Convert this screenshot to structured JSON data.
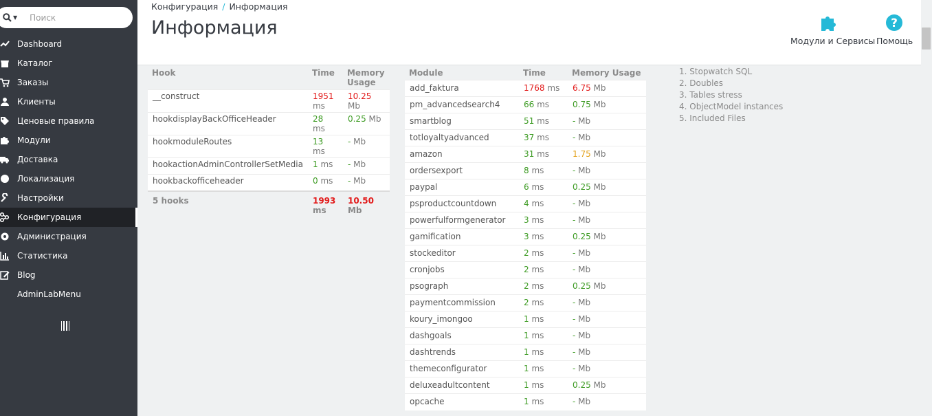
{
  "search": {
    "placeholder": "Поиск"
  },
  "sidebar": {
    "items": [
      {
        "label": "Dashboard",
        "icon": "trending-icon"
      },
      {
        "label": "Каталог",
        "icon": "store-icon"
      },
      {
        "label": "Заказы",
        "icon": "cart-icon"
      },
      {
        "label": "Клиенты",
        "icon": "user-icon"
      },
      {
        "label": "Ценовые правила",
        "icon": "tag-icon"
      },
      {
        "label": "Модули",
        "icon": "puzzle-icon"
      },
      {
        "label": "Доставка",
        "icon": "truck-icon"
      },
      {
        "label": "Локализация",
        "icon": "globe-icon"
      },
      {
        "label": "Настройки",
        "icon": "wrench-icon"
      },
      {
        "label": "Конфигурация",
        "icon": "settings-icon",
        "active": true
      },
      {
        "label": "Администрация",
        "icon": "gear-icon"
      },
      {
        "label": "Статистика",
        "icon": "bar-chart-icon"
      },
      {
        "label": "Blog",
        "icon": "edit-icon"
      },
      {
        "label": "AdminLabMenu",
        "icon": ""
      }
    ]
  },
  "header": {
    "breadcrumb": [
      "Конфигурация",
      "Информация"
    ],
    "breadcrumb_separator": "/",
    "title": "Информация",
    "toolbar": {
      "modules_label": "Модули и Сервисы",
      "help_label": "Помощь"
    }
  },
  "hooks": {
    "headers": {
      "name": "Hook",
      "time": "Time",
      "memory": "Memory Usage"
    },
    "rows": [
      {
        "name": "__construct",
        "time": "1951",
        "time_unit": "ms",
        "time_color": "red",
        "memory": "10.25",
        "memory_unit": "Mb",
        "memory_color": "red"
      },
      {
        "name": "hookdisplayBackOfficeHeader",
        "time": "28",
        "time_unit": "ms",
        "time_color": "green",
        "memory": "0.25",
        "memory_unit": "Mb",
        "memory_color": "green"
      },
      {
        "name": "hookmoduleRoutes",
        "time": "13",
        "time_unit": "ms",
        "time_color": "green",
        "memory": "-",
        "memory_unit": "Mb",
        "memory_color": "green"
      },
      {
        "name": "hookactionAdminControllerSetMedia",
        "time": "1",
        "time_unit": "ms",
        "time_color": "green",
        "memory": "-",
        "memory_unit": "Mb",
        "memory_color": "green"
      },
      {
        "name": "hookbackofficeheader",
        "time": "0",
        "time_unit": "ms",
        "time_color": "green",
        "memory": "-",
        "memory_unit": "Mb",
        "memory_color": "green"
      }
    ],
    "total": {
      "name": "5 hooks",
      "time": "1993",
      "time_unit": "ms",
      "memory": "10.50",
      "memory_unit": "Mb"
    }
  },
  "modules": {
    "headers": {
      "name": "Module",
      "time": "Time",
      "memory": "Memory Usage"
    },
    "rows": [
      {
        "name": "add_faktura",
        "time": "1768",
        "time_unit": "ms",
        "time_color": "red",
        "memory": "6.75",
        "memory_unit": "Mb",
        "memory_color": "red"
      },
      {
        "name": "pm_advancedsearch4",
        "time": "66",
        "time_unit": "ms",
        "time_color": "green",
        "memory": "0.75",
        "memory_unit": "Mb",
        "memory_color": "green"
      },
      {
        "name": "smartblog",
        "time": "51",
        "time_unit": "ms",
        "time_color": "green",
        "memory": "-",
        "memory_unit": "Mb",
        "memory_color": "green"
      },
      {
        "name": "totloyaltyadvanced",
        "time": "37",
        "time_unit": "ms",
        "time_color": "green",
        "memory": "-",
        "memory_unit": "Mb",
        "memory_color": "green"
      },
      {
        "name": "amazon",
        "time": "31",
        "time_unit": "ms",
        "time_color": "green",
        "memory": "1.75",
        "memory_unit": "Mb",
        "memory_color": "orange"
      },
      {
        "name": "ordersexport",
        "time": "8",
        "time_unit": "ms",
        "time_color": "green",
        "memory": "-",
        "memory_unit": "Mb",
        "memory_color": "green"
      },
      {
        "name": "paypal",
        "time": "6",
        "time_unit": "ms",
        "time_color": "green",
        "memory": "0.25",
        "memory_unit": "Mb",
        "memory_color": "green"
      },
      {
        "name": "psproductcountdown",
        "time": "4",
        "time_unit": "ms",
        "time_color": "green",
        "memory": "-",
        "memory_unit": "Mb",
        "memory_color": "green"
      },
      {
        "name": "powerfulformgenerator",
        "time": "3",
        "time_unit": "ms",
        "time_color": "green",
        "memory": "-",
        "memory_unit": "Mb",
        "memory_color": "green"
      },
      {
        "name": "gamification",
        "time": "3",
        "time_unit": "ms",
        "time_color": "green",
        "memory": "0.25",
        "memory_unit": "Mb",
        "memory_color": "green"
      },
      {
        "name": "stockeditor",
        "time": "2",
        "time_unit": "ms",
        "time_color": "green",
        "memory": "-",
        "memory_unit": "Mb",
        "memory_color": "green"
      },
      {
        "name": "cronjobs",
        "time": "2",
        "time_unit": "ms",
        "time_color": "green",
        "memory": "-",
        "memory_unit": "Mb",
        "memory_color": "green"
      },
      {
        "name": "psograph",
        "time": "2",
        "time_unit": "ms",
        "time_color": "green",
        "memory": "0.25",
        "memory_unit": "Mb",
        "memory_color": "green"
      },
      {
        "name": "paymentcommission",
        "time": "2",
        "time_unit": "ms",
        "time_color": "green",
        "memory": "-",
        "memory_unit": "Mb",
        "memory_color": "green"
      },
      {
        "name": "koury_imongoo",
        "time": "1",
        "time_unit": "ms",
        "time_color": "green",
        "memory": "-",
        "memory_unit": "Mb",
        "memory_color": "green"
      },
      {
        "name": "dashgoals",
        "time": "1",
        "time_unit": "ms",
        "time_color": "green",
        "memory": "-",
        "memory_unit": "Mb",
        "memory_color": "green"
      },
      {
        "name": "dashtrends",
        "time": "1",
        "time_unit": "ms",
        "time_color": "green",
        "memory": "-",
        "memory_unit": "Mb",
        "memory_color": "green"
      },
      {
        "name": "themeconfigurator",
        "time": "1",
        "time_unit": "ms",
        "time_color": "green",
        "memory": "-",
        "memory_unit": "Mb",
        "memory_color": "green"
      },
      {
        "name": "deluxeadultcontent",
        "time": "1",
        "time_unit": "ms",
        "time_color": "green",
        "memory": "0.25",
        "memory_unit": "Mb",
        "memory_color": "green"
      },
      {
        "name": "opcache",
        "time": "1",
        "time_unit": "ms",
        "time_color": "green",
        "memory": "-",
        "memory_unit": "Mb",
        "memory_color": "green"
      }
    ]
  },
  "links": [
    "1. Stopwatch SQL",
    "2. Doubles",
    "3. Tables stress",
    "4. ObjectModel instances",
    "5. Included Files"
  ],
  "colors": {
    "accent": "#25b9d7",
    "green": "#3d9b23",
    "red": "#e21b1b",
    "orange": "#e3a018",
    "sidebar": "#363a41"
  }
}
